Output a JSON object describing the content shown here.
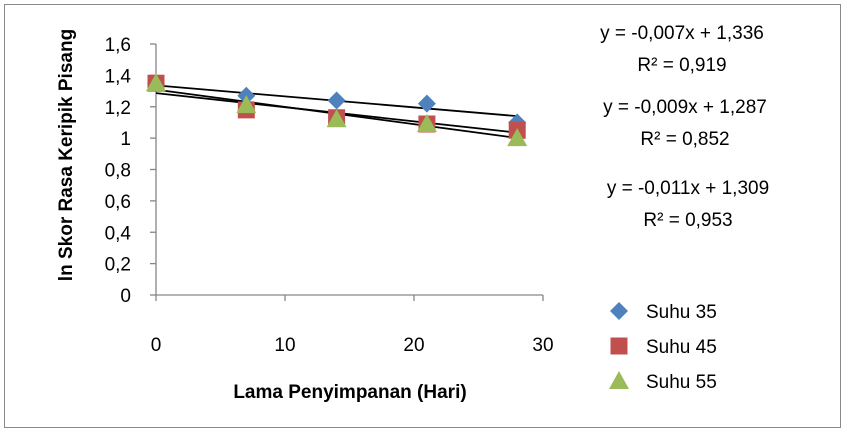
{
  "chart_data": {
    "type": "scatter",
    "xlabel": "Lama Penyimpanan (Hari)",
    "ylabel": "ln Skor Rasa Keripik Pisang",
    "xlim": [
      0,
      30
    ],
    "ylim": [
      0,
      1.6
    ],
    "x_ticks": [
      "0",
      "10",
      "20",
      "30"
    ],
    "y_ticks": [
      "0",
      "0,2",
      "0,4",
      "0,6",
      "0,8",
      "1",
      "1,2",
      "1,4",
      "1,6"
    ],
    "x_tick_values": [
      0,
      10,
      20,
      30
    ],
    "y_tick_values": [
      0,
      0.2,
      0.4,
      0.6,
      0.8,
      1,
      1.2,
      1.4,
      1.6
    ],
    "grid": false,
    "legend_position": "bottom-right",
    "series": [
      {
        "name": "Suhu 35",
        "color": "#4f81bd",
        "marker": "diamond",
        "x": [
          0,
          7,
          14,
          21,
          28
        ],
        "y": [
          1.35,
          1.27,
          1.24,
          1.22,
          1.1
        ],
        "trendline": {
          "slope": -0.007,
          "intercept": 1.336,
          "equation": "y = -0,007x + 1,336",
          "r2": "R² = 0,919"
        }
      },
      {
        "name": "Suhu 45",
        "color": "#c0504d",
        "marker": "square",
        "x": [
          0,
          7,
          14,
          21,
          28
        ],
        "y": [
          1.35,
          1.18,
          1.13,
          1.09,
          1.05
        ],
        "trendline": {
          "slope": -0.009,
          "intercept": 1.287,
          "equation": "y = -0,009x + 1,287",
          "r2": "R² = 0,852"
        }
      },
      {
        "name": "Suhu 55",
        "color": "#9bbb59",
        "marker": "triangle",
        "x": [
          0,
          7,
          14,
          21,
          28
        ],
        "y": [
          1.35,
          1.21,
          1.12,
          1.09,
          1.0
        ],
        "trendline": {
          "slope": -0.011,
          "intercept": 1.309,
          "equation": "y = -0,011x + 1,309",
          "r2": "R² = 0,953"
        }
      }
    ]
  }
}
